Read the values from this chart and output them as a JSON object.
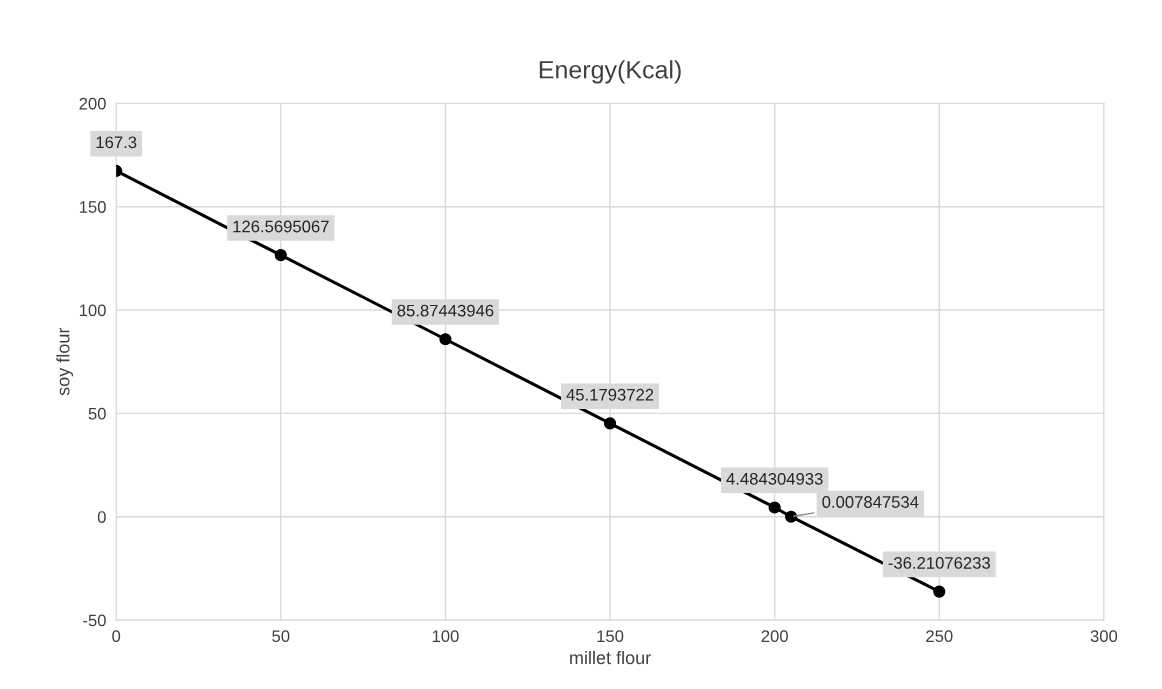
{
  "chart_data": {
    "type": "line",
    "title": "Energy(Kcal)",
    "xlabel": "millet flour",
    "ylabel": "soy flour",
    "x": [
      0,
      50,
      100,
      150,
      200,
      205,
      250
    ],
    "series": [
      {
        "color": "#000000",
        "values": [
          167.3,
          126.5695067,
          85.87443946,
          45.1793722,
          4.484304933,
          0.007847534,
          -36.21076233
        ]
      }
    ],
    "xlim": [
      0,
      300
    ],
    "xticks": [
      0,
      50,
      100,
      150,
      200,
      250,
      300
    ],
    "ylim": [
      -50,
      200
    ],
    "yticks": [
      -50,
      0,
      50,
      100,
      150,
      200
    ],
    "grid": true,
    "marker": "circle",
    "line_style": "solid",
    "data_labels": true,
    "legend": false
  }
}
